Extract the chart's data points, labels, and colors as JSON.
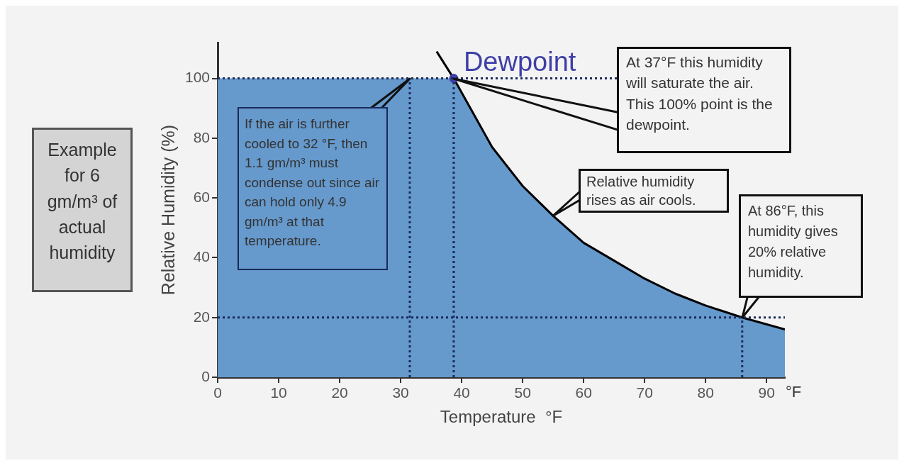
{
  "chart_data": {
    "type": "area",
    "xlabel": "Temperature  °F",
    "ylabel": "Relative Humidity (%)",
    "xlim": [
      0,
      93
    ],
    "ylim": [
      0,
      112
    ],
    "xticks": [
      0,
      10,
      20,
      30,
      40,
      50,
      60,
      70,
      80,
      90
    ],
    "yticks": [
      0,
      20,
      40,
      60,
      80,
      100
    ],
    "legend": false,
    "series": [
      {
        "color": "#6699cc",
        "x": [
          0,
          38.7,
          45,
          50,
          55,
          60,
          65,
          70,
          75,
          80,
          86,
          93
        ],
        "values": [
          100,
          100,
          77,
          64,
          54,
          45,
          39,
          33,
          28,
          24,
          20,
          16
        ]
      },
      {
        "type": "line",
        "color": "#000000",
        "x": [
          35.9,
          38.7,
          45,
          50,
          55,
          60,
          65,
          70,
          75,
          80,
          86,
          93
        ],
        "values": [
          109,
          100,
          77,
          64,
          54,
          45,
          39,
          33,
          28,
          24,
          20,
          16
        ]
      },
      {
        "type": "scatter",
        "name": "Dewpoint",
        "color": "#3f3fa8",
        "marker": "circle",
        "x": [
          38.7
        ],
        "values": [
          100
        ]
      }
    ],
    "ref_lines": [
      {
        "axis": "y",
        "value": 100,
        "color": "#1a2a5a",
        "line_style": "dotted"
      },
      {
        "axis": "y",
        "value": 20,
        "color": "#1a2a5a",
        "line_style": "dotted"
      },
      {
        "axis": "x",
        "value": 31.5,
        "color": "#1a2a5a",
        "line_style": "dotted"
      },
      {
        "axis": "x",
        "value": 38.7,
        "color": "#1a2a5a",
        "line_style": "dotted"
      },
      {
        "axis": "x",
        "value": 86,
        "color": "#1a2a5a",
        "line_style": "dotted"
      }
    ],
    "annotations": [
      "Example for 6 gm/m³ of actual humidity",
      "At 37°F this humidity will saturate the air. This 100% point is the dewpoint.",
      "If the air is further cooled to 32 °F, then 1.1 gm/m³ must condense out since air can hold only 4.9 gm/m³ at that temperature.",
      {
        "text": "Relative humidity rises as air cools.",
        "x": 55,
        "y": 54
      },
      {
        "text": "At 86°F, this humidity gives 20% relative humidity.",
        "x": 86,
        "y": 20
      },
      "°F"
    ]
  }
}
